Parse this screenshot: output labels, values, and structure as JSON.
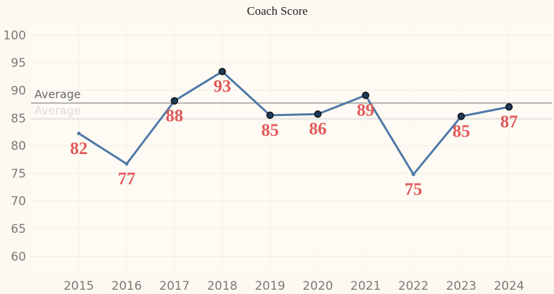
{
  "chart_data": {
    "type": "line",
    "title": "Coach Score",
    "categories": [
      "2015",
      "2016",
      "2017",
      "2018",
      "2019",
      "2020",
      "2021",
      "2022",
      "2023",
      "2024"
    ],
    "values": [
      82.2,
      76.7,
      88.1,
      93.4,
      85.5,
      85.7,
      89.1,
      74.8,
      85.3,
      87.0
    ],
    "data_labels": [
      "82",
      "77",
      "88",
      "93",
      "85",
      "86",
      "89",
      "75",
      "85",
      "87"
    ],
    "highlighted": [
      false,
      false,
      true,
      true,
      true,
      true,
      true,
      false,
      true,
      true
    ],
    "label_position": [
      "below",
      "below",
      "below",
      "below",
      "below",
      "below",
      "below",
      "below",
      "below",
      "below"
    ],
    "ylim": [
      57.5,
      101.5
    ],
    "yticks": [
      60,
      65,
      70,
      75,
      80,
      85,
      90,
      95,
      100
    ],
    "reference_lines": [
      {
        "label": "Average",
        "value": 87.7,
        "color": "#9a9a9a"
      },
      {
        "label": "Average",
        "value": 84.8,
        "color": "#e6e6e6",
        "ghost": true
      }
    ],
    "xlabel": "",
    "ylabel": "",
    "grid": true,
    "colors": {
      "line": "#4e79a7",
      "marker_fill": "#1f3b5a",
      "label": "#e05a5a",
      "background": "#fdf9f1"
    }
  }
}
